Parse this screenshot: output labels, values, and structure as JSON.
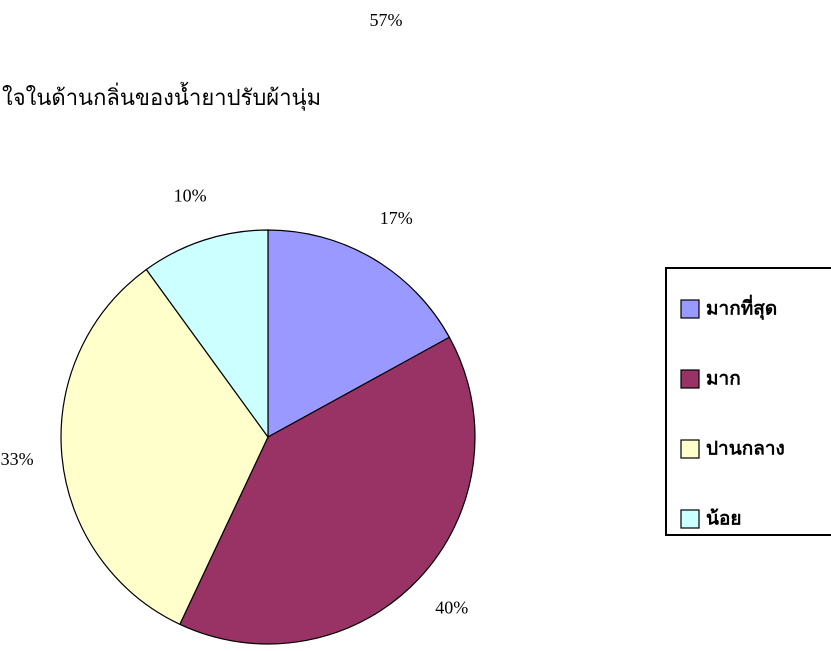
{
  "chart_data": {
    "type": "pie",
    "title": "ใจในด้านกลิ่นของน้ำยาปรับผ้านุ่ม",
    "annotations": [
      "57%"
    ],
    "categories": [
      "มากที่สุด",
      "มาก",
      "ปานกลาง",
      "น้อย"
    ],
    "values": [
      17,
      40,
      33,
      10
    ],
    "value_labels": [
      "17%",
      "40%",
      "33%",
      "10%"
    ],
    "colors": [
      "#9999ff",
      "#993366",
      "#ffffcc",
      "#ccffff"
    ],
    "legend": "right"
  }
}
